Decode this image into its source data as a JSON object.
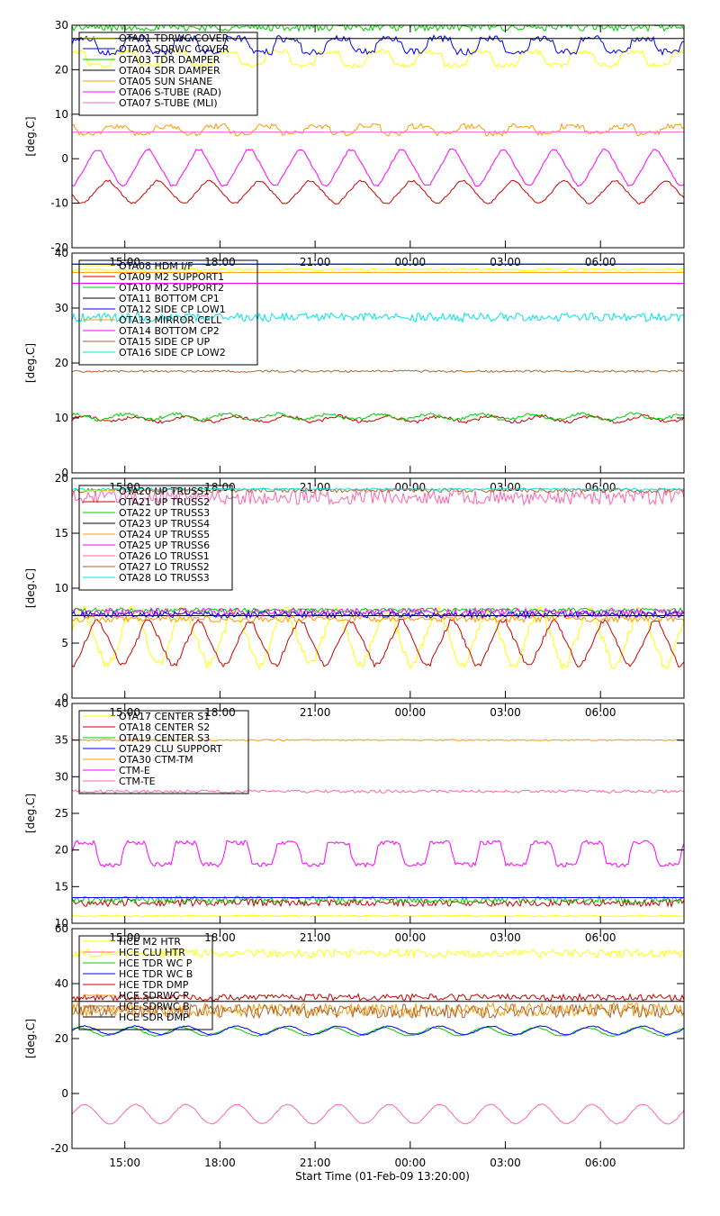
{
  "x_title": "Start Time (01-Feb-09 13:20:00)",
  "x_ticks": [
    "15:00",
    "18:00",
    "21:00",
    "00:00",
    "03:00",
    "06:00"
  ],
  "chart_data": [
    {
      "type": "line",
      "ylabel": "[deg.C]",
      "ylim": [
        -20,
        30
      ],
      "y_ticks": [
        -20,
        -10,
        0,
        10,
        20,
        30
      ],
      "xlim_hours": [
        0,
        19.3
      ],
      "x_tick_hours": [
        1.6667,
        4.6667,
        7.6667,
        10.6667,
        13.6667,
        16.6667
      ],
      "show_x_tick_labels": true,
      "legend_placement": "top-left",
      "series": [
        {
          "name": "OTA01 TDRWC COVER",
          "color": "#ffff00",
          "shape": "square",
          "base": 22.5,
          "amp": 1.5,
          "period": 1.6,
          "phase": 0.2,
          "noise": 0.5
        },
        {
          "name": "OTA02 SDRWC COVER",
          "color": "#0000ff",
          "shape": "square",
          "base": 25.5,
          "amp": 1.5,
          "period": 1.6,
          "phase": 0.0,
          "noise": 0.7
        },
        {
          "name": "OTA03 TDR DAMPER",
          "color": "#00cc00",
          "shape": "flat",
          "base": 29.5,
          "amp": 0.0,
          "period": 1.0,
          "phase": 0.0,
          "noise": 0.8
        },
        {
          "name": "OTA04 SDR DAMPER",
          "color": "#000000",
          "shape": "flat",
          "base": 27.0,
          "amp": 0.0,
          "period": 1.0,
          "phase": 0.0,
          "noise": 0.0
        },
        {
          "name": "OTA05 SUN SHANE",
          "color": "#ff9900",
          "shape": "square",
          "base": 6.5,
          "amp": 0.8,
          "period": 1.6,
          "phase": 0.4,
          "noise": 0.6
        },
        {
          "name": "OTA06 S-TUBE (RAD)",
          "color": "#ff00ff",
          "shape": "triangle",
          "base": -2.0,
          "amp": 4.0,
          "period": 1.6,
          "phase": 0.0,
          "noise": 0.2
        },
        {
          "name": "OTA07 S-TUBE (MLI)",
          "color": "#ff66cc",
          "shape": "flat",
          "base": 6.0,
          "amp": 0.0,
          "period": 1.0,
          "phase": 0.0,
          "noise": 0.0
        },
        {
          "name": "",
          "color": "#cc0000",
          "shape": "triangle",
          "base": -7.5,
          "amp": 2.5,
          "period": 1.6,
          "phase": 0.8,
          "noise": 0.2
        }
      ]
    },
    {
      "type": "line",
      "ylabel": "[deg.C]",
      "ylim": [
        0,
        40
      ],
      "y_ticks": [
        0,
        10,
        20,
        30,
        40
      ],
      "xlim_hours": [
        0,
        19.3
      ],
      "x_tick_hours": [
        1.6667,
        4.6667,
        7.6667,
        10.6667,
        13.6667,
        16.6667
      ],
      "show_x_tick_labels": true,
      "legend_placement": "top-left",
      "series": [
        {
          "name": "OTA08 HDM I/F",
          "color": "#ffff00",
          "shape": "flat",
          "base": 37.0,
          "amp": 0.0,
          "period": 1.0,
          "phase": 0.0,
          "noise": 0.2
        },
        {
          "name": "OTA09 M2 SUPPORT1",
          "color": "#cc0000",
          "shape": "sine",
          "base": 9.8,
          "amp": 0.5,
          "period": 1.6,
          "phase": 0.0,
          "noise": 0.3
        },
        {
          "name": "OTA10 M2 SUPPORT2",
          "color": "#00cc00",
          "shape": "sine",
          "base": 10.2,
          "amp": 0.5,
          "period": 1.6,
          "phase": 0.2,
          "noise": 0.3
        },
        {
          "name": "OTA11 BOTTOM CP1",
          "color": "#000000",
          "shape": "flat",
          "base": 38.0,
          "amp": 0.0,
          "period": 1.0,
          "phase": 0.0,
          "noise": 0.0
        },
        {
          "name": "OTA12 SIDE CP LOW1",
          "color": "#0000ff",
          "shape": "flat",
          "base": 38.0,
          "amp": 0.0,
          "period": 1.0,
          "phase": 0.0,
          "noise": 0.0
        },
        {
          "name": "OTA13 MIRROR CELL",
          "color": "#ff9900",
          "shape": "flat",
          "base": 36.5,
          "amp": 0.0,
          "period": 1.0,
          "phase": 0.0,
          "noise": 0.0
        },
        {
          "name": "OTA14 BOTTOM CP2",
          "color": "#ff00ff",
          "shape": "flat",
          "base": 34.5,
          "amp": 0.0,
          "period": 1.0,
          "phase": 0.0,
          "noise": 0.0
        },
        {
          "name": "OTA15 SIDE CP UP",
          "color": "#aa6633",
          "shape": "flat",
          "base": 18.5,
          "amp": 0.0,
          "period": 1.0,
          "phase": 0.0,
          "noise": 0.2
        },
        {
          "name": "OTA16 SIDE CP LOW2",
          "color": "#00e5e5",
          "shape": "flat",
          "base": 28.3,
          "amp": 0.0,
          "period": 1.0,
          "phase": 0.0,
          "noise": 0.8
        }
      ]
    },
    {
      "type": "line",
      "ylabel": "[deg.C]",
      "ylim": [
        0,
        20
      ],
      "y_ticks": [
        0,
        5,
        10,
        15,
        20
      ],
      "xlim_hours": [
        0,
        19.3
      ],
      "x_tick_hours": [
        1.6667,
        4.6667,
        7.6667,
        10.6667,
        13.6667,
        16.6667
      ],
      "show_x_tick_labels": true,
      "legend_placement": "top-left",
      "series": [
        {
          "name": "OTA20 UP TRUSS1",
          "color": "#ffff00",
          "shape": "triangle",
          "base": 5.5,
          "amp": 2.5,
          "period": 1.6,
          "phase": 0.3,
          "noise": 0.4
        },
        {
          "name": "OTA21 UP TRUSS2",
          "color": "#cc0000",
          "shape": "triangle",
          "base": 5.0,
          "amp": 2.0,
          "period": 1.6,
          "phase": 0.0,
          "noise": 0.2
        },
        {
          "name": "OTA22 UP TRUSS3",
          "color": "#00cc00",
          "shape": "flat",
          "base": 8.0,
          "amp": 0.0,
          "period": 1.0,
          "phase": 0.0,
          "noise": 0.2
        },
        {
          "name": "OTA23 UP TRUSS4",
          "color": "#000000",
          "shape": "flat",
          "base": 7.5,
          "amp": 0.0,
          "period": 1.0,
          "phase": 0.0,
          "noise": 0.0
        },
        {
          "name": "OTA24 UP TRUSS5",
          "color": "#ff9900",
          "shape": "flat",
          "base": 7.2,
          "amp": 0.0,
          "period": 1.0,
          "phase": 0.0,
          "noise": 0.3
        },
        {
          "name": "OTA25 UP TRUSS6",
          "color": "#ff00ff",
          "shape": "flat",
          "base": 7.8,
          "amp": 0.0,
          "period": 1.0,
          "phase": 0.0,
          "noise": 0.4
        },
        {
          "name": "OTA26 LO TRUSS1",
          "color": "#ff66aa",
          "shape": "flat",
          "base": 18.3,
          "amp": 0.0,
          "period": 1.0,
          "phase": 0.0,
          "noise": 0.7
        },
        {
          "name": "OTA27 LO TRUSS2",
          "color": "#aa6633",
          "shape": "flat",
          "base": 18.9,
          "amp": 0.0,
          "period": 1.0,
          "phase": 0.0,
          "noise": 0.2
        },
        {
          "name": "OTA28 LO TRUSS3",
          "color": "#00e5e5",
          "shape": "flat",
          "base": 19.0,
          "amp": 0.0,
          "period": 1.0,
          "phase": 0.0,
          "noise": 0.1
        },
        {
          "name": "",
          "color": "#0000ff",
          "shape": "flat",
          "base": 7.6,
          "amp": 0.0,
          "period": 1.0,
          "phase": 0.0,
          "noise": 0.3
        }
      ]
    },
    {
      "type": "line",
      "ylabel": "[deg.C]",
      "ylim": [
        10,
        40
      ],
      "y_ticks": [
        10,
        15,
        20,
        25,
        30,
        35,
        40
      ],
      "xlim_hours": [
        0,
        19.3
      ],
      "x_tick_hours": [
        1.6667,
        4.6667,
        7.6667,
        10.6667,
        13.6667,
        16.6667
      ],
      "show_x_tick_labels": true,
      "legend_placement": "top-left",
      "series": [
        {
          "name": "OTA17 CENTER S1",
          "color": "#ffff00",
          "shape": "flat",
          "base": 11.0,
          "amp": 0.0,
          "period": 1.0,
          "phase": 0.0,
          "noise": 0.1
        },
        {
          "name": "OTA18 CENTER S2",
          "color": "#cc0000",
          "shape": "flat",
          "base": 12.8,
          "amp": 0.0,
          "period": 1.0,
          "phase": 0.0,
          "noise": 0.5
        },
        {
          "name": "OTA19 CENTER S3",
          "color": "#00cc00",
          "shape": "flat",
          "base": 13.2,
          "amp": 0.0,
          "period": 1.0,
          "phase": 0.0,
          "noise": 0.5
        },
        {
          "name": "OTA29 CLU SUPPORT",
          "color": "#0000ff",
          "shape": "flat",
          "base": 13.5,
          "amp": 0.0,
          "period": 1.0,
          "phase": 0.0,
          "noise": 0.0
        },
        {
          "name": "OTA30 CTM-TM",
          "color": "#ff9900",
          "shape": "flat",
          "base": 35.0,
          "amp": 0.0,
          "period": 1.0,
          "phase": 0.0,
          "noise": 0.1
        },
        {
          "name": "CTM-E",
          "color": "#ff00ff",
          "shape": "square",
          "base": 19.5,
          "amp": 1.5,
          "period": 1.6,
          "phase": 0.0,
          "noise": 0.3
        },
        {
          "name": "CTM-TE",
          "color": "#ff66aa",
          "shape": "flat",
          "base": 28.0,
          "amp": 0.0,
          "period": 1.0,
          "phase": 0.0,
          "noise": 0.2
        }
      ]
    },
    {
      "type": "line",
      "ylabel": "[deg.C]",
      "ylim": [
        -20,
        60
      ],
      "y_ticks": [
        -20,
        0,
        20,
        40,
        60
      ],
      "xlim_hours": [
        0,
        19.3
      ],
      "x_tick_hours": [
        1.6667,
        4.6667,
        7.6667,
        10.6667,
        13.6667,
        16.6667
      ],
      "show_x_tick_labels": true,
      "legend_placement": "top-left",
      "series": [
        {
          "name": "HCE M2 HTR",
          "color": "#ffff00",
          "shape": "flat",
          "base": 51.0,
          "amp": 0.0,
          "period": 1.0,
          "phase": 0.0,
          "noise": 1.5
        },
        {
          "name": "HCE CLU HTR",
          "color": "#ff66aa",
          "shape": "sine",
          "base": -7.5,
          "amp": 3.5,
          "period": 1.6,
          "phase": 0.0,
          "noise": 0.2
        },
        {
          "name": "HCE TDR WC P",
          "color": "#00cc00",
          "shape": "sine",
          "base": 22.5,
          "amp": 1.5,
          "period": 1.6,
          "phase": 0.1,
          "noise": 0.2
        },
        {
          "name": "HCE TDR WC B",
          "color": "#0000ff",
          "shape": "sine",
          "base": 23.0,
          "amp": 1.5,
          "period": 1.6,
          "phase": 0.0,
          "noise": 0.2
        },
        {
          "name": "HCE TDR DMP",
          "color": "#cc0000",
          "shape": "flat",
          "base": 35.0,
          "amp": 0.0,
          "period": 1.0,
          "phase": 0.0,
          "noise": 1.2
        },
        {
          "name": "HCE SDRWC P",
          "color": "#ff9900",
          "shape": "flat",
          "base": 30.5,
          "amp": 0.0,
          "period": 1.0,
          "phase": 0.0,
          "noise": 2.5
        },
        {
          "name": "HCE SDRWC B",
          "color": "#aa6633",
          "shape": "flat",
          "base": 30.0,
          "amp": 0.0,
          "period": 1.0,
          "phase": 0.0,
          "noise": 2.5
        },
        {
          "name": "HCE SDR DMP",
          "color": "#000000",
          "shape": "flat",
          "base": 33.5,
          "amp": 0.0,
          "period": 1.0,
          "phase": 0.0,
          "noise": 0.0
        }
      ]
    }
  ]
}
